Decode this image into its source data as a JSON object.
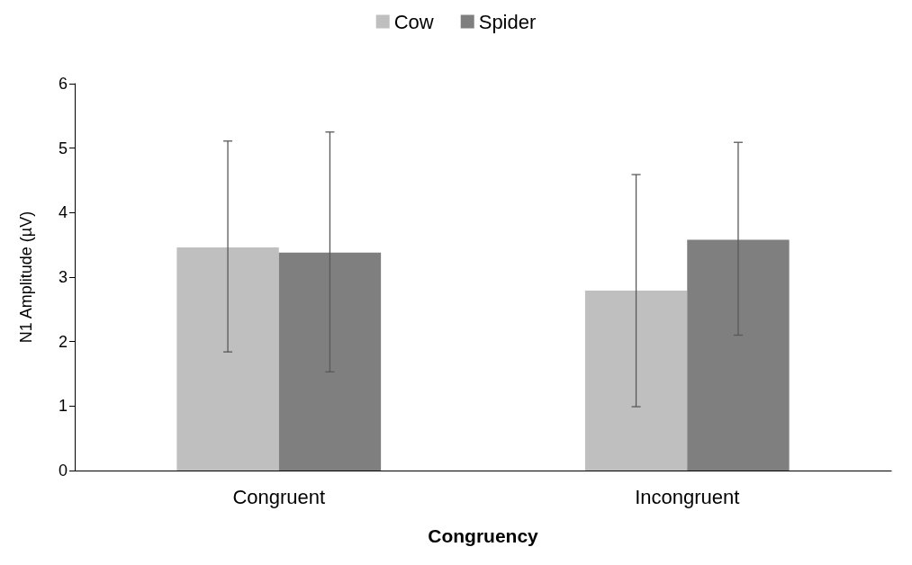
{
  "chart_data": {
    "type": "bar",
    "xlabel": "Congruency",
    "ylabel": "N1 Amplitude (µV)",
    "categories": [
      "Congruent",
      "Incongruent"
    ],
    "series": [
      {
        "name": "Cow",
        "color": "#bfbfbf",
        "values": [
          3.46,
          2.79
        ],
        "errors": [
          [
            1.84,
            5.11
          ],
          [
            0.99,
            4.59
          ]
        ]
      },
      {
        "name": "Spider",
        "color": "#7f7f7f",
        "values": [
          3.38,
          3.58
        ],
        "errors": [
          [
            1.53,
            5.25
          ],
          [
            2.1,
            5.09
          ]
        ]
      }
    ],
    "ylim": [
      0,
      6
    ],
    "yticks": [
      0,
      1,
      2,
      3,
      4,
      5,
      6
    ],
    "grid": false,
    "legend": "top"
  }
}
